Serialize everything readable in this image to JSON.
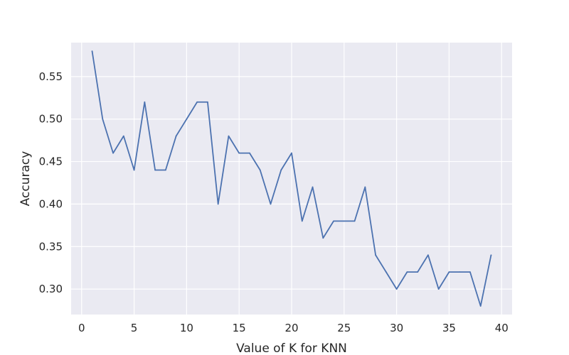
{
  "chart_data": {
    "type": "line",
    "title": "",
    "xlabel": "Value of K for KNN",
    "ylabel": "Accuracy",
    "xlim": [
      -1,
      41
    ],
    "ylim": [
      0.27,
      0.59
    ],
    "xticks": [
      0,
      5,
      10,
      15,
      20,
      25,
      30,
      35,
      40
    ],
    "xtick_labels": [
      "0",
      "5",
      "10",
      "15",
      "20",
      "25",
      "30",
      "35",
      "40"
    ],
    "yticks": [
      0.3,
      0.35,
      0.4,
      0.45,
      0.5,
      0.55
    ],
    "ytick_labels": [
      "0.30",
      "0.35",
      "0.40",
      "0.45",
      "0.50",
      "0.55"
    ],
    "grid": true,
    "background_color": "#eaeaf2",
    "grid_color": "#ffffff",
    "series": [
      {
        "color": "#4c72b0",
        "x": [
          1,
          2,
          3,
          4,
          5,
          6,
          7,
          8,
          9,
          10,
          11,
          12,
          13,
          14,
          15,
          16,
          17,
          18,
          19,
          20,
          21,
          22,
          23,
          24,
          25,
          26,
          27,
          28,
          29,
          30,
          31,
          32,
          33,
          34,
          35,
          36,
          37,
          38,
          39
        ],
        "y": [
          0.58,
          0.5,
          0.46,
          0.48,
          0.44,
          0.52,
          0.44,
          0.44,
          0.48,
          0.5,
          0.52,
          0.52,
          0.4,
          0.48,
          0.46,
          0.46,
          0.44,
          0.4,
          0.44,
          0.46,
          0.38,
          0.42,
          0.36,
          0.38,
          0.38,
          0.38,
          0.42,
          0.34,
          0.32,
          0.3,
          0.32,
          0.32,
          0.34,
          0.3,
          0.32,
          0.32,
          0.32,
          0.28,
          0.34
        ]
      }
    ]
  }
}
